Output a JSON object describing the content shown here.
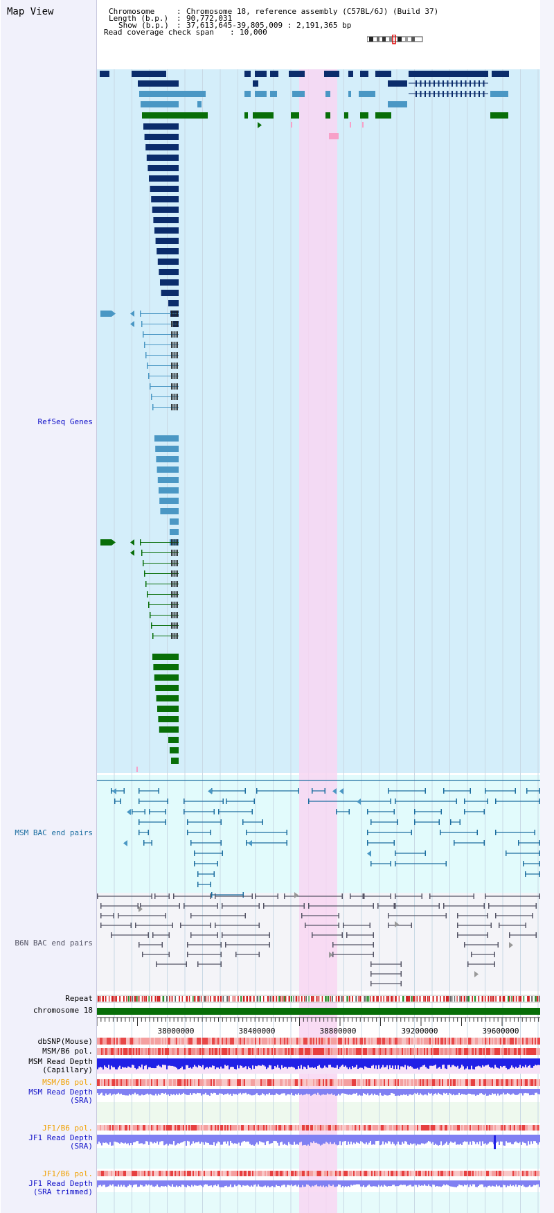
{
  "page_title": "Map View",
  "header": {
    "chromosome_label": "Chromosome",
    "chromosome_value": "Chromosome 18, reference assembly (C57BL/6J) (Build 37)",
    "length_label": "Length (b.p.)",
    "length_value": "90,772,031",
    "show_label": "Show (b.p.)",
    "show_value": "37,613,645-39,805,009 : 2,191,365 bp",
    "coverage_label": "Read coverage check span",
    "coverage_value": "10,000"
  },
  "track_labels": {
    "refseq": "RefSeq Genes",
    "msm_bac": "MSM BAC end pairs",
    "b6n_bac": "B6N BAC end pairs",
    "repeat": "Repeat",
    "chromosome": "chromosome 18",
    "dbsnp": "dbSNP(Mouse)",
    "msm_b6_pol_1": "MSM/B6 pol.",
    "msm_read_depth_cap_1": "MSM Read Depth",
    "msm_read_depth_cap_2": "(Capillary)",
    "msm_b6_pol_2": "MSM/B6 pol.",
    "msm_read_depth_sra_1": "MSM Read Depth",
    "msm_read_depth_sra_2": "(SRA)",
    "jf1_b6_pol_1": "JF1/B6 pol.",
    "jf1_read_depth_sra_1": "JF1 Read Depth",
    "jf1_read_depth_sra_2": "(SRA)",
    "jf1_b6_pol_2": "JF1/B6 pol.",
    "jf1_read_depth_trim_1": "JF1 Read Depth",
    "jf1_read_depth_trim_2": "(SRA trimmed)"
  },
  "axis_ticks": [
    "38000000",
    "38400000",
    "38800000",
    "39200000",
    "39600000"
  ],
  "colors": {
    "refseq_bg": "#d4eefa",
    "msm_bg": "#e2fbfc",
    "b6n_bg": "#f4f4f8",
    "highlight": "#f8d6f2",
    "dark_blue": "#0b2c6b",
    "mid_blue": "#4a97c4",
    "green": "#086e08",
    "msm_blue": "#1c6ea0",
    "label_blue": "#1010c8",
    "label_orange": "#f0a000",
    "depth_blue": "#2020e6",
    "depth_light": "#8080f2",
    "pol_red": "#e62020"
  }
}
